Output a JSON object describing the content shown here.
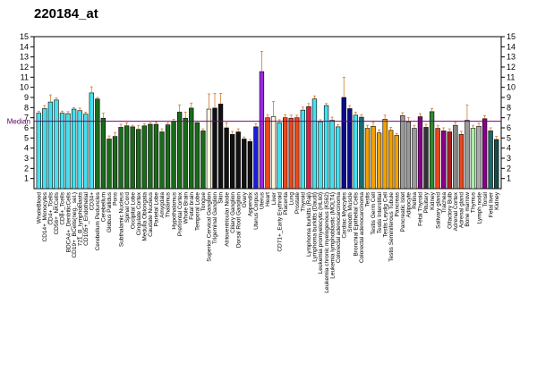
{
  "chart_data": {
    "type": "bar",
    "title": "220184_at",
    "ylim": [
      0,
      15
    ],
    "yticks": [
      1,
      2,
      3,
      4,
      5,
      6,
      7,
      8,
      9,
      10,
      11,
      12,
      13,
      14,
      15
    ],
    "median": 6.65,
    "median_label": "Median",
    "median_color": "#7b007b",
    "error_color": "#cc7a33",
    "categories": [
      "WholeBlood",
      "CD14+_Monocytes",
      "CD4+_Tcells",
      "CD56+_NKCells",
      "CD8+_Tcells",
      "BDCA4+_DentriticCells",
      "CD19+_BCells(neg._sel.)",
      "721_B_lymphoblasts",
      "CD105+_Endothelial",
      "CD34+",
      "Cerebellum Peduncles",
      "Cerebellum",
      "Globus Pallidus",
      "Pons",
      "Subthalamic Nucleus",
      "Spinal Cord",
      "Occipital Lobe",
      "Cingulate Cortex",
      "Medulla Oblongata",
      "Caudate Nucleus",
      "Parietal Lobe",
      "Amygdala",
      "Thalamus",
      "Hypothalamus",
      "Prefrontal Cortex",
      "Whole Brain",
      "Fetal brain",
      "Temporal Lobe",
      "Tongue",
      "Superior Cervical Ganglion",
      "Trigeminal Ganglion",
      "Skin",
      "Atrioventricular Node",
      "Ciliary Ganglion",
      "Dorsal Root Ganglion",
      "Ovary",
      "Appendix",
      "Uterus Corpus",
      "Uterus",
      "Heart",
      "Liver",
      "CD71+_Early Erythroid",
      "Placenta",
      "Lung",
      "Prostate",
      "Thyroid",
      "Lymphoma burkitts (Raji)",
      "Lymphoma burkitts (Daudi)",
      "Leukemia promyelocytic (HL60)",
      "Leukemia chronic myelogenous (K562)",
      "Leukemia lymphoblastic (MOLT4)",
      "Colorectal adenocarcinoma",
      "Cardiac Myocytes",
      "Smooth Muscle",
      "Bronchial Epithelial Cells",
      "Colorectal adenocarcinoma",
      "Testis",
      "Testis Germ Cell",
      "Testis Interstitial",
      "Testis Leydig Cell",
      "Testis Seminiferous Tubule",
      "Pancreas",
      "Pancreatic Islet",
      "Adipocyte",
      "Retina",
      "Fetal Thyroid",
      "Pituitary",
      "Kidney",
      "Salivary gland",
      "Trachea",
      "Olfactory Bulb",
      "Adrenal Cortex",
      "Adrenal gland",
      "Bone marrow",
      "Thymus",
      "Lymph node",
      "Tonsil",
      "Fetal liver",
      "Kidney"
    ],
    "cat_labels": [
      "WholeBlood",
      "CD14+_Monocytes",
      "CD4+_Tcells",
      "CD56+_NKCells",
      "CD8+_Tcells",
      "BDCA4+_DentriticCells",
      "CD19+_BCells(neg._sel.)",
      "721_B_lymphoblasts",
      "CD105+_Endothelial",
      "",
      "Cerebellum Peduncles",
      "",
      "Globus Pallidus",
      "",
      "Subthalamic Nucleus",
      "",
      "Occipital Lobe",
      "",
      "Medulla Oblongata",
      "",
      "Parietal Lobe",
      "",
      "Thalamus",
      "",
      "Prefrontal Cortex",
      "",
      "Whole Brain",
      "",
      "Tongue",
      "",
      "Trigeminal Ganglion",
      "",
      "Atrioventricular Node",
      "",
      "Dorsal Root Ganglion",
      "",
      "Appendix",
      "",
      "Uterus",
      "",
      "Liver",
      "",
      "Placenta",
      "",
      "Prostate",
      "",
      "Lymphoma burkitts (Raji)",
      "",
      "Leukemia chronic myelogenous (K562)",
      "",
      "Leukemia lymphoblastic (MOLT4)",
      "",
      "Cardiac Myocytes",
      "",
      "Bronchial Epithelial Cells",
      "",
      "Testis",
      "",
      "Testis Interstitial",
      "",
      "Testis Seminiferous Tubule",
      "",
      "Pancreatic Islet",
      "",
      "Retina",
      "",
      "Pituitary",
      "",
      "Salivary gland",
      "",
      "Olfactory Bulb",
      "",
      "Adrenal gland",
      "",
      "Bone marrow",
      "",
      "Lymph node",
      "",
      "Fetal liver",
      ""
    ],
    "cat_labels_right": [
      "",
      "",
      "",
      "",
      "",
      "",
      "",
      "",
      "",
      "",
      "",
      "Cerebellum",
      "",
      "Pons",
      "",
      "Spinal Cord",
      "",
      "Cingulate Cortex",
      "",
      "Caudate Nucleus",
      "",
      "Amygdala",
      "",
      "Hypothalamus",
      "",
      "",
      "",
      "Fetal brain",
      "",
      "Superior Cervical Ganglion",
      "",
      "Skin",
      "",
      "Ciliary Ganglion",
      "",
      "Ovary",
      "",
      "Uterus Corpus",
      "",
      "Heart",
      "",
      "CD71+_Early Erythroid",
      "",
      "Lung",
      "",
      "Thyroid",
      "",
      "Lymphoma burkitts (Daudi)",
      "Leukemia promyelocytic (HL60)",
      "",
      "",
      "Colorectal adenocarcinoma",
      "",
      "Smooth Muscle",
      "",
      "Colorectal adenocarcinoma",
      "",
      "Testis Germ Cell",
      "",
      "Testis Leydig Cell",
      "",
      "Pancreas",
      "",
      "Adipocyte",
      "",
      "Fetal Thyroid",
      "",
      "Kidney",
      "",
      "Trachea",
      "",
      "Adrenal Cortex",
      "",
      "",
      "",
      "Thymus",
      "",
      "Tonsil",
      "",
      "Kidney"
    ],
    "values": [
      7.45,
      7.9,
      8.55,
      8.75,
      7.45,
      7.4,
      7.85,
      7.7,
      7.35,
      9.45,
      8.85,
      6.95,
      4.9,
      5.15,
      6.05,
      6.2,
      6.1,
      5.85,
      6.2,
      6.35,
      6.35,
      5.6,
      6.3,
      6.65,
      7.55,
      6.95,
      7.95,
      6.5,
      5.7,
      7.85,
      7.95,
      8.35,
      6.0,
      5.35,
      5.6,
      4.9,
      4.65,
      6.1,
      11.55,
      7.0,
      7.1,
      6.5,
      7.0,
      6.95,
      7.0,
      7.75,
      8.1,
      8.85,
      6.6,
      8.2,
      6.75,
      6.1,
      9.0,
      7.9,
      7.25,
      7.05,
      5.95,
      6.15,
      5.5,
      6.85,
      5.75,
      5.25,
      7.2,
      6.6,
      5.95,
      7.1,
      6.05,
      7.6,
      5.95,
      5.7,
      5.6,
      6.25,
      5.35,
      6.75,
      5.95,
      6.15,
      6.9,
      5.7,
      4.85
    ],
    "errors": [
      0.2,
      0.3,
      0.7,
      0.2,
      0.2,
      0.2,
      0.15,
      0.25,
      0.2,
      0.6,
      0.15,
      0.5,
      0.3,
      0.4,
      0.3,
      0.3,
      0.15,
      0.4,
      0.2,
      0.15,
      0.2,
      0.3,
      0.2,
      0.2,
      0.7,
      0.6,
      0.5,
      0.15,
      0.2,
      1.5,
      1.45,
      1.05,
      0.5,
      0.3,
      0.3,
      0.2,
      0.2,
      0.3,
      2.0,
      0.3,
      1.5,
      0.3,
      0.3,
      0.3,
      0.25,
      0.3,
      0.3,
      0.3,
      0.2,
      0.2,
      0.3,
      0.2,
      2.0,
      0.3,
      0.3,
      0.25,
      0.3,
      0.4,
      0.3,
      0.4,
      0.3,
      0.2,
      0.3,
      0.4,
      0.3,
      0.3,
      0.3,
      0.3,
      0.3,
      0.3,
      0.3,
      0.3,
      0.3,
      1.5,
      0.3,
      0.3,
      0.3,
      0.3,
      0.3
    ],
    "colors": [
      "#44e0ee",
      "#44e0ee",
      "#44e0ee",
      "#44e0ee",
      "#44e0ee",
      "#44e0ee",
      "#44e0ee",
      "#44e0ee",
      "#44e0ee",
      "#44e0ee",
      "#1a6b1a",
      "#1a6b1a",
      "#1a6b1a",
      "#1a6b1a",
      "#1a6b1a",
      "#1a6b1a",
      "#1a6b1a",
      "#1a6b1a",
      "#1a6b1a",
      "#1a6b1a",
      "#1a6b1a",
      "#1a6b1a",
      "#1a6b1a",
      "#1a6b1a",
      "#1a6b1a",
      "#1a6b1a",
      "#1a6b1a",
      "#1a6b1a",
      "#1a6b1a",
      "#fff8e0",
      "#111111",
      "#111111",
      "#111111",
      "#111111",
      "#111111",
      "#111111",
      "#111111",
      "#1c1ce0",
      "#9a28e6",
      "#e8491e",
      "#fff8e0",
      "#44e0ee",
      "#e8491e",
      "#e8491e",
      "#e8491e",
      "#44e0ee",
      "#e01a40",
      "#44e0ee",
      "#44e0ee",
      "#44e0ee",
      "#44e0ee",
      "#44e0ee",
      "#0a0a8a",
      "#0a0a8a",
      "#44e0ee",
      "#1a6b6b",
      "#f0a000",
      "#f0a000",
      "#f0a000",
      "#f0a000",
      "#f0a000",
      "#f0a000",
      "#9a9a9a",
      "#9a9a9a",
      "#9a9a9a",
      "#8a008a",
      "#333333",
      "#338833",
      "#e8491e",
      "#8a008a",
      "#aa2222",
      "#888888",
      "#e8491e",
      "#9a9a9a",
      "#aaeeaa",
      "#aaaaaa",
      "#8a008a",
      "#1a6b6b",
      "#1a4b4b"
    ]
  }
}
